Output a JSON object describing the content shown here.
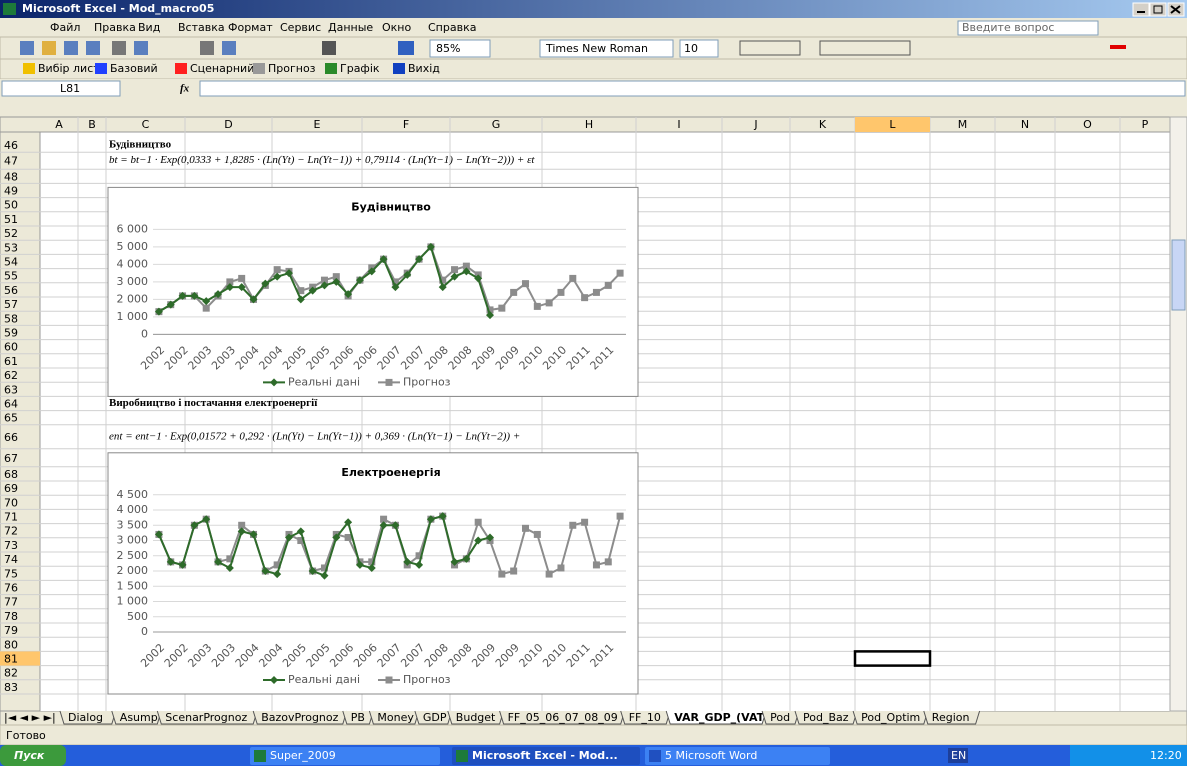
{
  "window": {
    "title": "Microsoft Excel - Mod_macro05",
    "question": "Введите вопрос"
  },
  "menu": [
    "Файл",
    "Правка",
    "Вид",
    "Вставка",
    "Формат",
    "Сервис",
    "Данные",
    "Окно",
    "Справка"
  ],
  "toolbar": {
    "zoom": "85%",
    "font": "Times New Roman",
    "size": "10"
  },
  "toolbar2": [
    "Вибір листа",
    "Базовий",
    "Сценарний",
    "Прогноз",
    "Графік",
    "Вихід"
  ],
  "formula_bar": {
    "name_box": "L81",
    "fx": "fx"
  },
  "columns": [
    "A",
    "B",
    "C",
    "D",
    "E",
    "F",
    "G",
    "H",
    "I",
    "J",
    "K",
    "L",
    "M",
    "N",
    "O",
    "P"
  ],
  "rows": [
    46,
    47,
    48,
    49,
    50,
    51,
    52,
    53,
    54,
    55,
    56,
    57,
    58,
    59,
    60,
    61,
    62,
    63,
    64,
    65,
    66,
    67,
    68,
    69,
    70,
    71,
    72,
    73,
    74,
    75,
    76,
    77,
    78,
    79,
    80,
    81,
    82,
    83
  ],
  "cells": {
    "C46": "Будівництво",
    "C47": "bt = bt−1 · Exp(0,0333 + 1,8285 · (Ln(Yt) − Ln(Yt−1)) + 0,79114 · (Ln(Yt−1) − Ln(Yt−2))) + εt",
    "C64": "Виробництво і постачання електроенергії",
    "C66": "ent = ent−1 · Exp(0,01572 + 0,292 · (Ln(Yt) − Ln(Yt−1)) + 0,369 · (Ln(Yt−1) − Ln(Yt−2)) +"
  },
  "selected_cell": "L81",
  "sheet_tabs": [
    "Dialog",
    "Asump",
    "ScenarPrognoz",
    "BazovPrognoz",
    "PB",
    "Money",
    "GDP",
    "Budget",
    "FF_05_06_07_08_09",
    "FF_10",
    "VAR_GDP_(VAT)",
    "Pod",
    "Pod_Baz",
    "Pod_Optim",
    "Region"
  ],
  "active_tab": 10,
  "status": "Готово",
  "taskbar": {
    "start": "Пуск",
    "items": [
      "Super_2009",
      "Microsoft Excel - Mod...",
      "5 Microsoft Word"
    ],
    "lang": "EN",
    "clock": "12:20"
  },
  "chart_data": [
    {
      "type": "line",
      "title": "Будівництво",
      "categories": [
        "2002",
        null,
        "2002",
        null,
        "2003",
        null,
        "2003",
        null,
        "2004",
        null,
        "2004",
        null,
        "2005",
        null,
        "2005",
        null,
        "2006",
        null,
        "2006",
        null,
        "2007",
        null,
        "2007",
        null,
        "2008",
        null,
        "2008",
        null,
        "2009",
        null,
        "2009",
        null,
        "2010",
        null,
        "2010",
        null,
        "2011",
        null,
        "2011",
        null
      ],
      "series": [
        {
          "name": "Реальні дані",
          "color": "#2e6b2a",
          "marker": "diamond",
          "values": [
            1300,
            1700,
            2200,
            2200,
            1900,
            2300,
            2700,
            2700,
            2000,
            2900,
            3300,
            3500,
            2000,
            2500,
            2800,
            3000,
            2300,
            3100,
            3600,
            4300,
            2700,
            3400,
            4300,
            5000,
            2700,
            3300,
            3600,
            3200,
            1100,
            null,
            null,
            null,
            null,
            null,
            null,
            null,
            null,
            null,
            null,
            null
          ]
        },
        {
          "name": "Прогноз",
          "color": "#8c8c8c",
          "marker": "square",
          "values": [
            1300,
            1700,
            2200,
            2200,
            1500,
            2200,
            3000,
            3200,
            2000,
            2800,
            3700,
            3600,
            2500,
            2700,
            3100,
            3300,
            2200,
            3100,
            3800,
            4300,
            3000,
            3500,
            4300,
            5000,
            3100,
            3700,
            3900,
            3400,
            1400,
            1500,
            2400,
            2900,
            1600,
            1800,
            2400,
            3200,
            2100,
            2400,
            2800,
            3500
          ]
        }
      ],
      "ylim": [
        0,
        6000
      ],
      "yticks": [
        0,
        {
          "value": 1000,
          "label": "1 000"
        },
        {
          "value": 2000,
          "label": "2 000"
        },
        {
          "value": 3000,
          "label": "3 000"
        },
        {
          "value": 4000,
          "label": "4 000"
        },
        {
          "value": 5000,
          "label": "5 000"
        },
        {
          "value": 6000,
          "label": "6 000"
        }
      ],
      "grid": true,
      "legend": "bottom"
    },
    {
      "type": "line",
      "title": "Електроенергія",
      "categories": [
        "2002",
        null,
        "2002",
        null,
        "2003",
        null,
        "2003",
        null,
        "2004",
        null,
        "2004",
        null,
        "2005",
        null,
        "2005",
        null,
        "2006",
        null,
        "2006",
        null,
        "2007",
        null,
        "2007",
        null,
        "2008",
        null,
        "2008",
        null,
        "2009",
        null,
        "2009",
        null,
        "2010",
        null,
        "2010",
        null,
        "2011",
        null,
        "2011",
        null
      ],
      "series": [
        {
          "name": "Реальні дані",
          "color": "#2e6b2a",
          "marker": "diamond",
          "values": [
            3200,
            2300,
            2200,
            3500,
            3700,
            2300,
            2100,
            3300,
            3200,
            2000,
            1900,
            3100,
            3300,
            2000,
            1850,
            3100,
            3600,
            2200,
            2100,
            3500,
            3500,
            2300,
            2200,
            3700,
            3800,
            2300,
            2400,
            3000,
            3100,
            null,
            null,
            null,
            null,
            null,
            null,
            null,
            null,
            null,
            null,
            null
          ]
        },
        {
          "name": "Прогноз",
          "color": "#8c8c8c",
          "marker": "square",
          "values": [
            3200,
            2300,
            2200,
            3500,
            3700,
            2300,
            2400,
            3500,
            3200,
            2000,
            2200,
            3200,
            3000,
            2000,
            2100,
            3200,
            3100,
            2300,
            2300,
            3700,
            3500,
            2200,
            2500,
            3700,
            3800,
            2200,
            2400,
            3600,
            3000,
            1900,
            2000,
            3400,
            3200,
            1900,
            2100,
            3500,
            3600,
            2200,
            2300,
            3800
          ]
        }
      ],
      "ylim": [
        0,
        4500
      ],
      "yticks": [
        0,
        500,
        {
          "value": 1000,
          "label": "1 000"
        },
        {
          "value": 1500,
          "label": "1 500"
        },
        {
          "value": 2000,
          "label": "2 000"
        },
        {
          "value": 2500,
          "label": "2 500"
        },
        {
          "value": 3000,
          "label": "3 000"
        },
        {
          "value": 3500,
          "label": "3 500"
        },
        {
          "value": 4000,
          "label": "4 000"
        },
        {
          "value": 4500,
          "label": "4 500"
        }
      ],
      "grid": true,
      "legend": "bottom"
    }
  ]
}
